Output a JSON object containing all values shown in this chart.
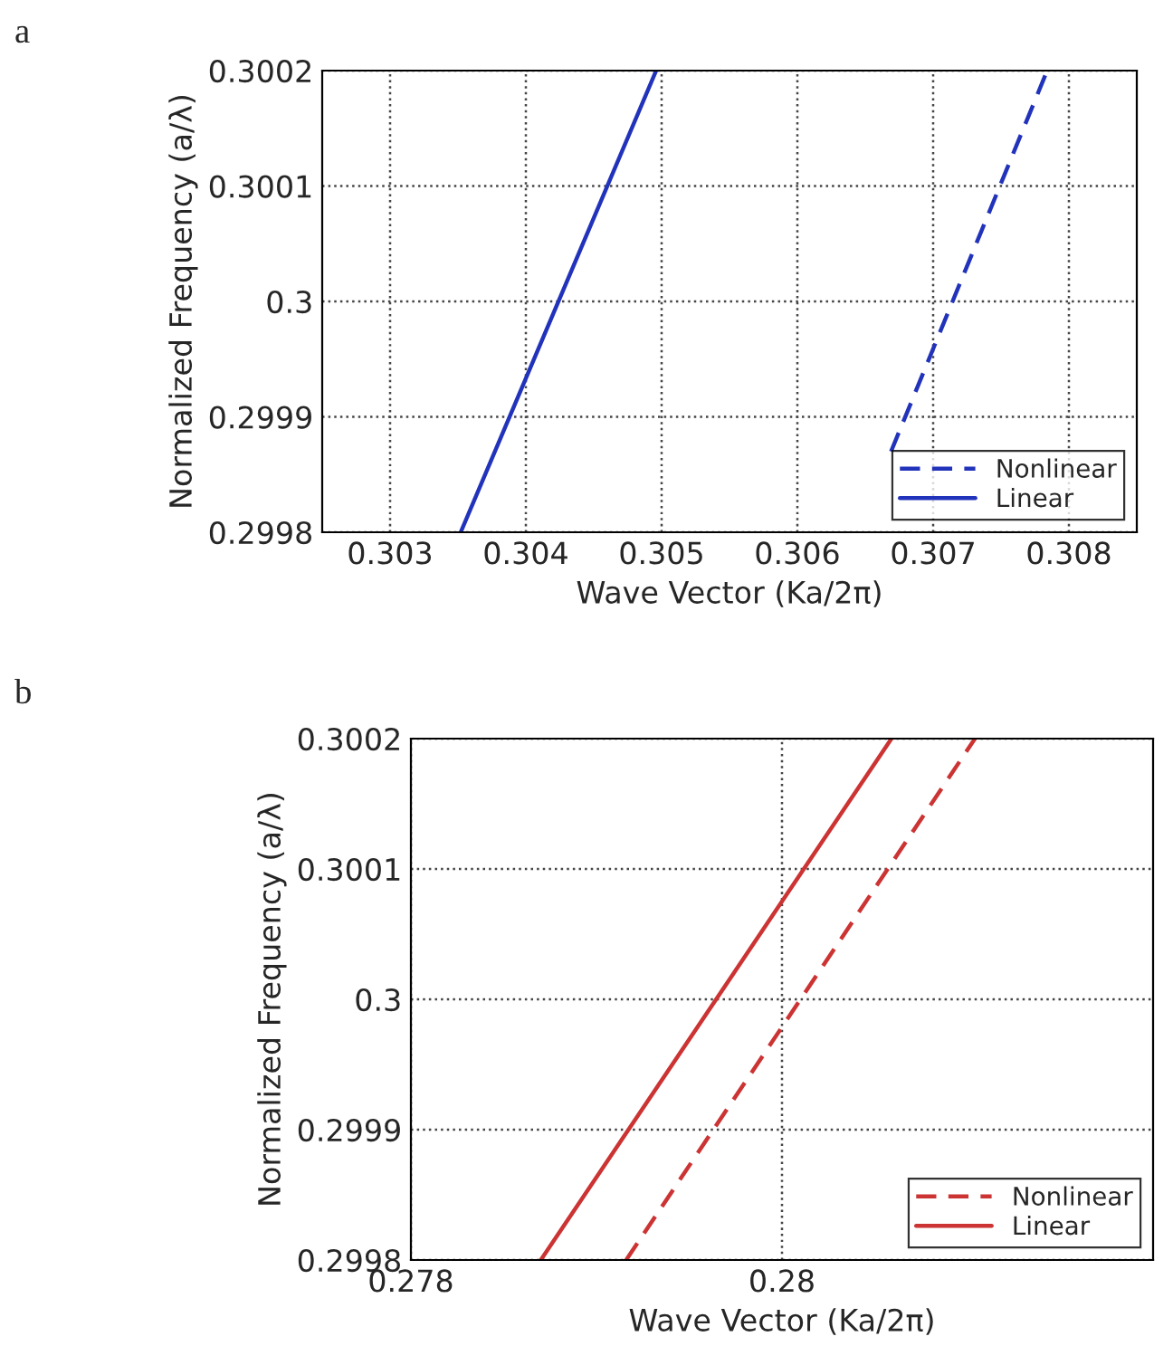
{
  "chart_data": [
    {
      "type": "line",
      "annotations": [
        "a"
      ],
      "xlabel": "Wave Vector (Ka/2π)",
      "ylabel": "Normalized Frequency (a/λ)",
      "xlim": [
        0.3025,
        0.3085
      ],
      "xticks": [
        0.303,
        0.304,
        0.305,
        0.306,
        0.307,
        0.308
      ],
      "ylim": [
        0.2998,
        0.3002
      ],
      "yticks": [
        0.2998,
        0.2999,
        0.3,
        0.3001,
        0.3002
      ],
      "grid": true,
      "legend": "bottom right",
      "series": [
        {
          "name": "Nonlinear",
          "color": "#2233bb",
          "line_style": "dashed",
          "x": [
            0.30669,
            0.30784
          ],
          "values": [
            0.29987,
            0.3002
          ]
        },
        {
          "name": "Linear",
          "color": "#2233bb",
          "line_style": "solid",
          "x": [
            0.30352,
            0.30496
          ],
          "values": [
            0.2998,
            0.3002
          ]
        }
      ]
    },
    {
      "type": "line",
      "annotations": [
        "b"
      ],
      "xlabel": "Wave Vector (Ka/2π)",
      "ylabel": "Normalized Frequency (a/λ)",
      "xlim": [
        0.278,
        0.282
      ],
      "xticks": [
        0.278,
        0.28
      ],
      "ylim": [
        0.2998,
        0.3002
      ],
      "yticks": [
        0.2998,
        0.2999,
        0.3,
        0.3001,
        0.3002
      ],
      "grid": true,
      "legend": "bottom right",
      "series": [
        {
          "name": "Nonlinear",
          "color": "#cc3333",
          "line_style": "dashed",
          "x": [
            0.27916,
            0.28104
          ],
          "values": [
            0.2998,
            0.3002
          ]
        },
        {
          "name": "Linear",
          "color": "#cc3333",
          "line_style": "solid",
          "x": [
            0.2787,
            0.28059
          ],
          "values": [
            0.2998,
            0.3002
          ]
        }
      ]
    }
  ]
}
